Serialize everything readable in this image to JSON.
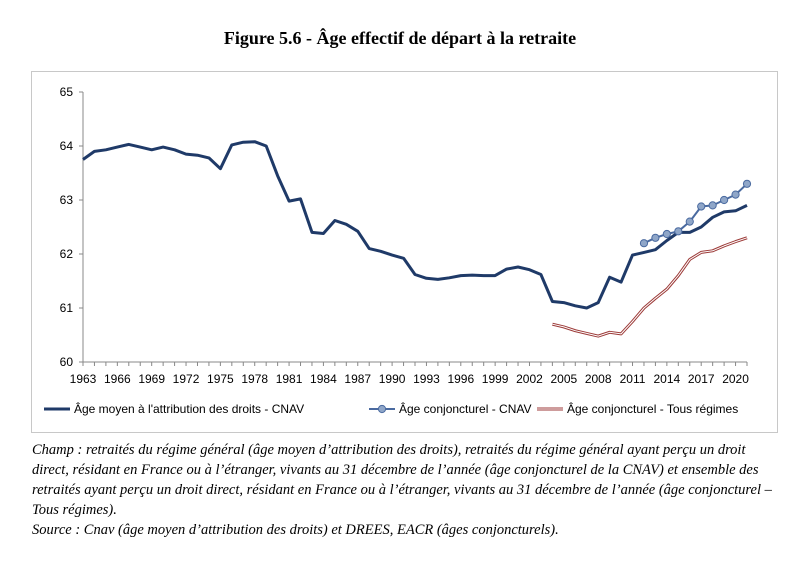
{
  "figure": {
    "title": "Figure 5.6 - Âge effectif de départ à la retraite"
  },
  "notes": {
    "champ": "Champ : retraités du régime général (âge moyen d’attribution des droits), retraités du régime général ayant perçu un droit direct, résidant en France ou à l’étranger, vivants au 31 décembre de l’année (âge conjoncturel de la CNAV) et ensemble des retraités ayant perçu un droit direct, résidant en France ou à l’étranger, vivants au 31 décembre de l’année (âge conjoncturel – Tous régimes).",
    "source": "Source : Cnav (âge moyen d’attribution des droits) et DREES, EACR (âges conjoncturels)."
  },
  "chart_data": {
    "type": "line",
    "title": "Figure 5.6 - Âge effectif de départ à la retraite",
    "xlabel": "",
    "ylabel": "",
    "xlim": [
      1963,
      2021
    ],
    "ylim": [
      60,
      65
    ],
    "y_ticks": [
      60,
      61,
      62,
      63,
      64,
      65
    ],
    "x_tick_labels": [
      "1963",
      "1966",
      "1969",
      "1972",
      "1975",
      "1978",
      "1981",
      "1984",
      "1987",
      "1990",
      "1993",
      "1996",
      "1999",
      "2002",
      "2005",
      "2008",
      "2011",
      "2014",
      "2017",
      "2020"
    ],
    "grid": false,
    "legend_position": "bottom",
    "series": [
      {
        "name": "Âge moyen à l'attribution des droits - CNAV",
        "color": "#1f3a68",
        "style": "thick",
        "points": [
          [
            1963,
            63.75
          ],
          [
            1964,
            63.9
          ],
          [
            1965,
            63.93
          ],
          [
            1966,
            63.98
          ],
          [
            1967,
            64.03
          ],
          [
            1968,
            63.98
          ],
          [
            1969,
            63.93
          ],
          [
            1970,
            63.98
          ],
          [
            1971,
            63.93
          ],
          [
            1972,
            63.85
          ],
          [
            1973,
            63.83
          ],
          [
            1974,
            63.78
          ],
          [
            1975,
            63.58
          ],
          [
            1976,
            64.02
          ],
          [
            1977,
            64.07
          ],
          [
            1978,
            64.08
          ],
          [
            1979,
            64.0
          ],
          [
            1980,
            63.45
          ],
          [
            1981,
            62.98
          ],
          [
            1982,
            63.02
          ],
          [
            1983,
            62.4
          ],
          [
            1984,
            62.38
          ],
          [
            1985,
            62.62
          ],
          [
            1986,
            62.55
          ],
          [
            1987,
            62.42
          ],
          [
            1988,
            62.1
          ],
          [
            1989,
            62.05
          ],
          [
            1990,
            61.98
          ],
          [
            1991,
            61.92
          ],
          [
            1992,
            61.62
          ],
          [
            1993,
            61.55
          ],
          [
            1994,
            61.53
          ],
          [
            1995,
            61.56
          ],
          [
            1996,
            61.6
          ],
          [
            1997,
            61.61
          ],
          [
            1998,
            61.6
          ],
          [
            1999,
            61.6
          ],
          [
            2000,
            61.72
          ],
          [
            2001,
            61.76
          ],
          [
            2002,
            61.71
          ],
          [
            2003,
            61.62
          ],
          [
            2004,
            61.12
          ],
          [
            2005,
            61.1
          ],
          [
            2006,
            61.04
          ],
          [
            2007,
            61.0
          ],
          [
            2008,
            61.1
          ],
          [
            2009,
            61.57
          ],
          [
            2010,
            61.48
          ],
          [
            2011,
            61.98
          ],
          [
            2012,
            62.03
          ],
          [
            2013,
            62.08
          ],
          [
            2014,
            62.25
          ],
          [
            2015,
            62.4
          ],
          [
            2016,
            62.4
          ],
          [
            2017,
            62.5
          ],
          [
            2018,
            62.68
          ],
          [
            2019,
            62.78
          ],
          [
            2020,
            62.8
          ],
          [
            2021,
            62.9
          ]
        ]
      },
      {
        "name": "Âge conjoncturel - CNAV",
        "color": "#4a6aa0",
        "marker_fill": "#8fa6c8",
        "style": "markers",
        "points": [
          [
            2012,
            62.2
          ],
          [
            2013,
            62.3
          ],
          [
            2014,
            62.37
          ],
          [
            2015,
            62.42
          ],
          [
            2016,
            62.6
          ],
          [
            2017,
            62.88
          ],
          [
            2018,
            62.9
          ],
          [
            2019,
            63.0
          ],
          [
            2020,
            63.1
          ],
          [
            2021,
            63.3
          ]
        ]
      },
      {
        "name": "Âge conjoncturel - Tous régimes",
        "color": "#9c3a38",
        "style": "double",
        "points": [
          [
            2004,
            60.7
          ],
          [
            2005,
            60.65
          ],
          [
            2006,
            60.58
          ],
          [
            2007,
            60.53
          ],
          [
            2008,
            60.48
          ],
          [
            2009,
            60.55
          ],
          [
            2010,
            60.52
          ],
          [
            2011,
            60.75
          ],
          [
            2012,
            61.0
          ],
          [
            2013,
            61.18
          ],
          [
            2014,
            61.35
          ],
          [
            2015,
            61.6
          ],
          [
            2016,
            61.9
          ],
          [
            2017,
            62.03
          ],
          [
            2018,
            62.06
          ],
          [
            2019,
            62.15
          ],
          [
            2020,
            62.23
          ],
          [
            2021,
            62.3
          ]
        ]
      }
    ]
  }
}
